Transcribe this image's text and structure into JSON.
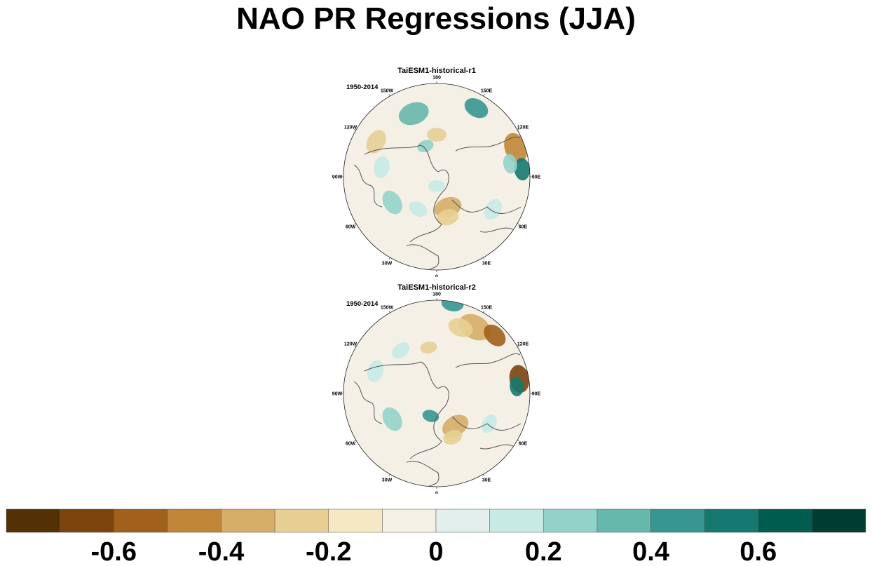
{
  "title": "NAO PR Regressions (JJA)",
  "panels": [
    {
      "title": "TaiESM1-historical-r1",
      "period": "1950-2014"
    },
    {
      "title": "TaiESM1-historical-r2",
      "period": "1950-2014"
    }
  ],
  "longitude_labels": [
    "180",
    "150E",
    "120E",
    "90E",
    "60E",
    "30E",
    "0",
    "30W",
    "60W",
    "90W",
    "120W",
    "150W"
  ],
  "chart_data": {
    "type": "heatmap",
    "title": "NAO PR Regressions (JJA)",
    "projection": "north polar stereographic",
    "subplots": [
      "TaiESM1-historical-r1",
      "TaiESM1-historical-r2"
    ],
    "colorbar": {
      "levels": [
        -0.7,
        -0.6,
        -0.5,
        -0.4,
        -0.3,
        -0.2,
        -0.1,
        0,
        0.1,
        0.2,
        0.3,
        0.4,
        0.5,
        0.6,
        0.7
      ],
      "tick_labels": [
        "-0.6",
        "-0.4",
        "-0.2",
        "0",
        "0.2",
        "0.4",
        "0.6"
      ],
      "colors": [
        "#543005",
        "#7b440d",
        "#a0611c",
        "#c28638",
        "#d6ad66",
        "#e7cf94",
        "#f6e8c3",
        "#f5f0e6",
        "#e3efec",
        "#c7eae5",
        "#92d3c9",
        "#66b7ac",
        "#35978f",
        "#147a6f",
        "#015c50",
        "#003c30"
      ]
    }
  }
}
